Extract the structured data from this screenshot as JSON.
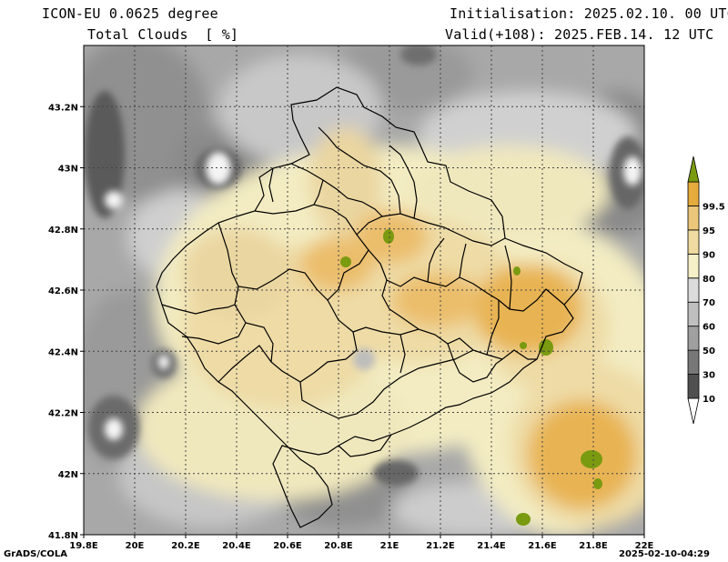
{
  "header": {
    "model": "ICON-EU 0.0625 degree",
    "variable": "Total Clouds  [ %]",
    "init": "Initialisation: 2025.02.10. 00 UTC",
    "valid": "Valid(+108): 2025.FEB.14. 12 UTC"
  },
  "axes": {
    "x_ticks": [
      "19.8E",
      "20E",
      "20.2E",
      "20.4E",
      "20.6E",
      "20.8E",
      "21E",
      "21.2E",
      "21.4E",
      "21.6E",
      "21.8E",
      "22E"
    ],
    "y_ticks": [
      "41.8N",
      "42N",
      "42.2N",
      "42.4N",
      "42.6N",
      "42.8N",
      "43N",
      "43.2N"
    ]
  },
  "colorbar": {
    "labels": [
      "10",
      "30",
      "50",
      "60",
      "70",
      "80",
      "90",
      "95",
      "99.5"
    ],
    "colors": [
      "#ffffff",
      "#505050",
      "#787878",
      "#a0a0a0",
      "#c0c0c0",
      "#dcdcdc",
      "#f5f0c8",
      "#f0dca0",
      "#ecc77a",
      "#e5ab3c",
      "#7a9a10"
    ]
  },
  "footer": {
    "left": "GrADS/COLA",
    "right": "2025-02-10-04:29"
  },
  "map_data": {
    "lon_range": [
      19.8,
      22.0
    ],
    "lat_range": [
      41.8,
      43.4
    ],
    "grid": true
  }
}
